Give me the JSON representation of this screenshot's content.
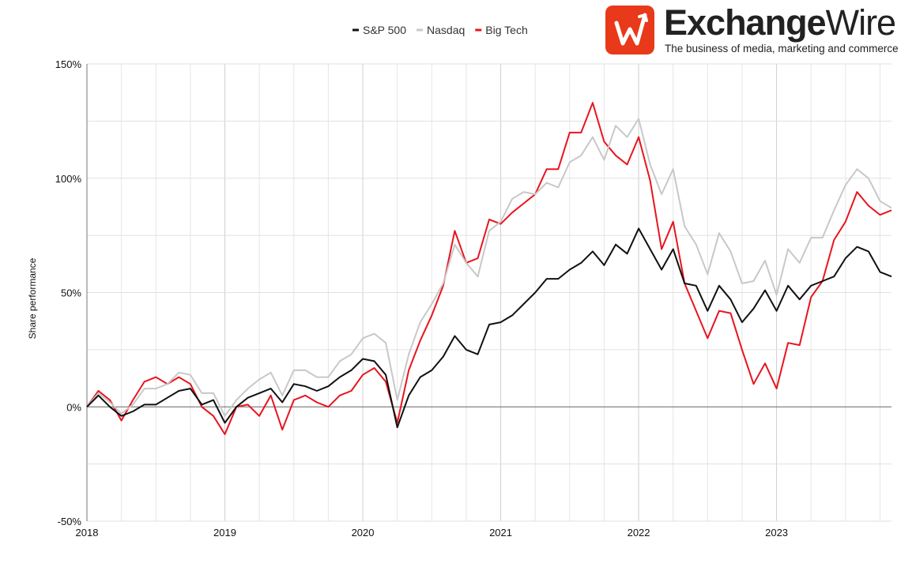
{
  "logo": {
    "icon": "exchangewire-w-icon",
    "name_bold": "Exchange",
    "name_light": "Wire",
    "tagline": "The business of media, marketing and commerce",
    "color": "#e8391a"
  },
  "chart_data": {
    "type": "line",
    "title": "",
    "xlabel": "",
    "ylabel": "Share performance",
    "x_ticks": [
      "2018",
      "2019",
      "2020",
      "2021",
      "2022",
      "2023"
    ],
    "y_ticks": [
      "150%",
      "100%",
      "50%",
      "0%",
      "-50%"
    ],
    "x_range": [
      "2018-01",
      "2023-11"
    ],
    "ylim": [
      -50,
      150
    ],
    "y_unit": "%",
    "grid": true,
    "legend_position": "top-center",
    "x": [
      "2018-01",
      "2018-02",
      "2018-03",
      "2018-04",
      "2018-05",
      "2018-06",
      "2018-07",
      "2018-08",
      "2018-09",
      "2018-10",
      "2018-11",
      "2018-12",
      "2019-01",
      "2019-02",
      "2019-03",
      "2019-04",
      "2019-05",
      "2019-06",
      "2019-07",
      "2019-08",
      "2019-09",
      "2019-10",
      "2019-11",
      "2019-12",
      "2020-01",
      "2020-02",
      "2020-03",
      "2020-04",
      "2020-05",
      "2020-06",
      "2020-07",
      "2020-08",
      "2020-09",
      "2020-10",
      "2020-11",
      "2020-12",
      "2021-01",
      "2021-02",
      "2021-03",
      "2021-04",
      "2021-05",
      "2021-06",
      "2021-07",
      "2021-08",
      "2021-09",
      "2021-10",
      "2021-11",
      "2021-12",
      "2022-01",
      "2022-02",
      "2022-03",
      "2022-04",
      "2022-05",
      "2022-06",
      "2022-07",
      "2022-08",
      "2022-09",
      "2022-10",
      "2022-11",
      "2022-12",
      "2023-01",
      "2023-02",
      "2023-03",
      "2023-04",
      "2023-05",
      "2023-06",
      "2023-07",
      "2023-08",
      "2023-09",
      "2023-10",
      "2023-11"
    ],
    "series": [
      {
        "name": "S&P 500",
        "color": "#111111",
        "values": [
          0,
          5,
          0,
          -4,
          -2,
          1,
          1,
          4,
          7,
          8,
          1,
          3,
          -7,
          0,
          4,
          6,
          8,
          2,
          10,
          9,
          7,
          9,
          13,
          16,
          21,
          20,
          14,
          -9,
          5,
          13,
          16,
          22,
          31,
          25,
          23,
          36,
          37,
          40,
          45,
          50,
          56,
          56,
          60,
          63,
          68,
          62,
          71,
          67,
          78,
          69,
          60,
          69,
          54,
          53,
          42,
          53,
          47,
          37,
          43,
          51,
          42,
          53,
          47,
          53,
          55,
          57,
          65,
          70,
          68,
          59,
          57
        ]
      },
      {
        "name": "Nasdaq",
        "color": "#c8c8c8",
        "values": [
          0,
          6,
          2,
          -3,
          1,
          8,
          8,
          10,
          15,
          14,
          6,
          6,
          -4,
          3,
          8,
          12,
          15,
          5,
          16,
          16,
          13,
          13,
          20,
          23,
          30,
          32,
          28,
          3,
          23,
          37,
          45,
          54,
          71,
          63,
          57,
          77,
          81,
          91,
          94,
          93,
          98,
          96,
          107,
          110,
          118,
          108,
          123,
          118,
          126,
          106,
          93,
          104,
          79,
          71,
          58,
          76,
          68,
          54,
          55,
          64,
          49,
          69,
          63,
          74,
          74,
          86,
          97,
          104,
          100,
          90,
          87
        ]
      },
      {
        "name": "Big Tech",
        "color": "#e8141e",
        "values": [
          0,
          7,
          3,
          -6,
          3,
          11,
          13,
          10,
          13,
          10,
          0,
          -4,
          -12,
          0,
          1,
          -4,
          5,
          -10,
          3,
          5,
          2,
          0,
          5,
          7,
          14,
          17,
          11,
          -7,
          16,
          29,
          40,
          53,
          77,
          63,
          65,
          82,
          80,
          85,
          89,
          93,
          104,
          104,
          120,
          120,
          133,
          116,
          110,
          106,
          118,
          99,
          69,
          81,
          54,
          42,
          30,
          42,
          41,
          25,
          10,
          19,
          8,
          28,
          27,
          48,
          55,
          73,
          81,
          94,
          88,
          84,
          86
        ]
      }
    ]
  }
}
